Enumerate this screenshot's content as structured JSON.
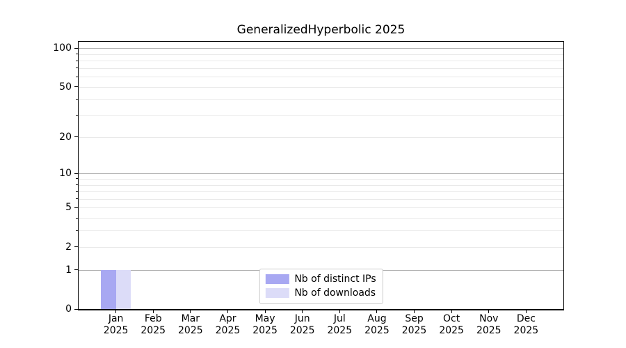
{
  "chart_data": {
    "type": "bar",
    "title": "GeneralizedHyperbolic 2025",
    "categories": [
      "Jan",
      "Feb",
      "Mar",
      "Apr",
      "May",
      "Jun",
      "Jul",
      "Aug",
      "Sep",
      "Oct",
      "Nov",
      "Dec"
    ],
    "category_year": "2025",
    "series": [
      {
        "name": "Nb of distinct IPs",
        "color": "#a8a8f2",
        "values": [
          1,
          0,
          0,
          0,
          0,
          0,
          0,
          0,
          0,
          0,
          0,
          0
        ]
      },
      {
        "name": "Nb of downloads",
        "color": "#dcdcf8",
        "values": [
          1,
          0,
          0,
          0,
          0,
          0,
          0,
          0,
          0,
          0,
          0,
          0
        ]
      }
    ],
    "yscale": "log1p",
    "ylim": [
      0,
      112
    ],
    "yticks": [
      0,
      1,
      2,
      5,
      10,
      20,
      50,
      100
    ],
    "major_gridlines": [
      1,
      10,
      100
    ],
    "minor_gridlines": [
      2,
      3,
      4,
      5,
      6,
      7,
      8,
      9,
      20,
      30,
      40,
      50,
      60,
      70,
      80,
      90
    ],
    "grid": true,
    "legend_position": "lower center",
    "colors": {
      "grid_major": "#b0b0b0",
      "grid_minor": "#e9e9e9",
      "axis": "#000000",
      "background": "#ffffff"
    }
  }
}
